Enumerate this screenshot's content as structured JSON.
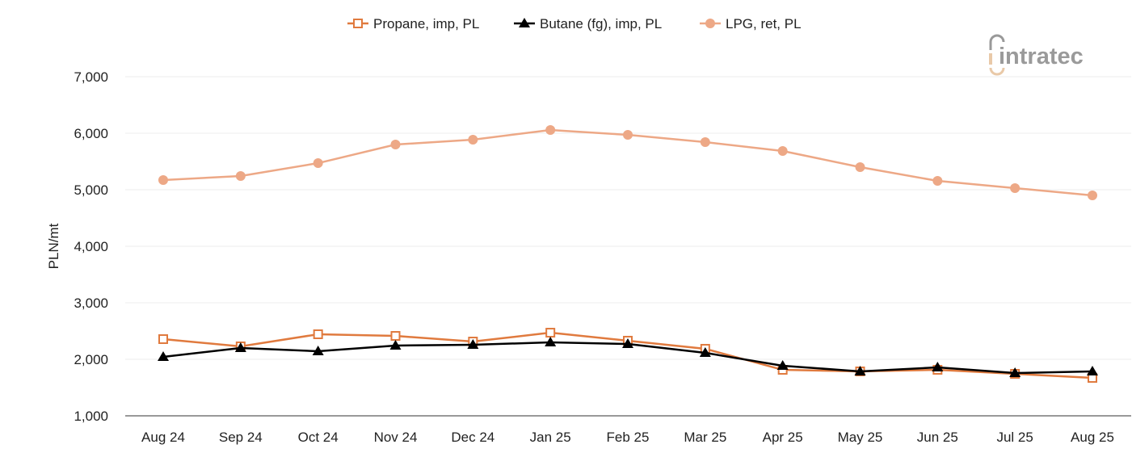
{
  "watermark": "intratec",
  "chart_data": {
    "type": "line",
    "title": "",
    "xlabel": "",
    "ylabel": "PLN/mt",
    "ylim": [
      1000,
      7000
    ],
    "yticks": [
      "1,000",
      "2,000",
      "3,000",
      "4,000",
      "5,000",
      "6,000",
      "7,000"
    ],
    "ytick_values": [
      1000,
      2000,
      3000,
      4000,
      5000,
      6000,
      7000
    ],
    "grid": true,
    "legend_position": "top",
    "categories": [
      "Aug 24",
      "Sep 24",
      "Oct 24",
      "Nov 24",
      "Dec 24",
      "Jan 25",
      "Feb 25",
      "Mar 25",
      "Apr 25",
      "May 25",
      "Jun 25",
      "Jul 25",
      "Aug 25"
    ],
    "series": [
      {
        "name": "Propane, imp, PL",
        "color": "#e07a3e",
        "marker": "open-square",
        "values": [
          2357,
          2229,
          2443,
          2414,
          2314,
          2471,
          2329,
          2186,
          1814,
          1786,
          1814,
          1743,
          1671
        ]
      },
      {
        "name": "Butane (fg), imp, PL",
        "color": "#000000",
        "marker": "triangle",
        "values": [
          2043,
          2200,
          2143,
          2243,
          2257,
          2300,
          2271,
          2114,
          1886,
          1786,
          1857,
          1757,
          1786
        ]
      },
      {
        "name": "LPG, ret, PL",
        "color": "#eda886",
        "marker": "circle",
        "values": [
          5171,
          5243,
          5471,
          5800,
          5886,
          6057,
          5971,
          5843,
          5686,
          5400,
          5157,
          5029,
          4900
        ]
      }
    ]
  }
}
